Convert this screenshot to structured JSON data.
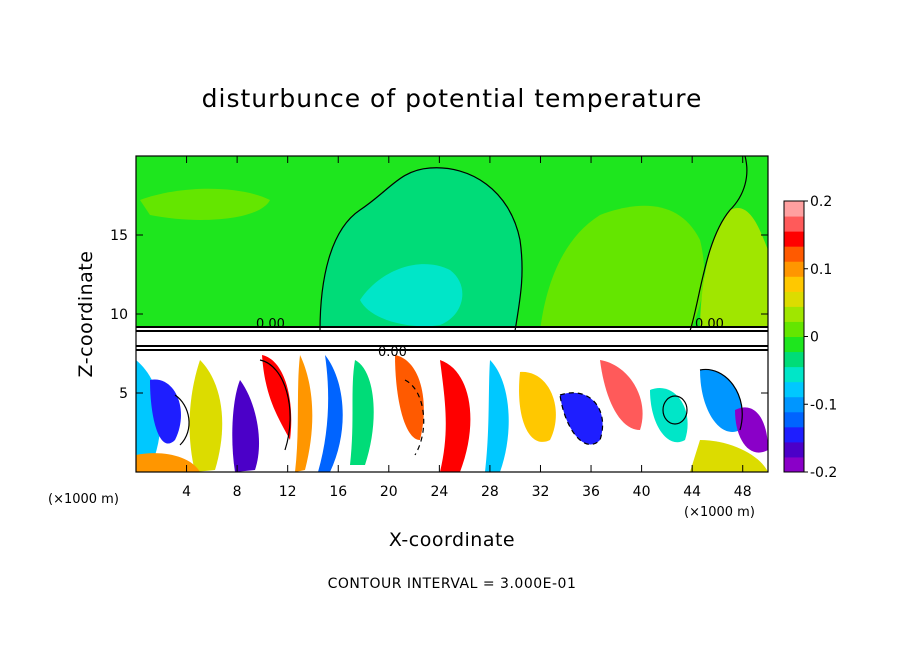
{
  "title": "disturbunce of potential temperature",
  "footer": "CONTOUR INTERVAL = 3.000E-01",
  "chart_data": {
    "type": "heatmap",
    "title": "disturbunce of potential temperature",
    "xlabel": "X-coordinate",
    "ylabel": "Z-coordinate",
    "x_unit": "(×1000 m)",
    "y_unit": "(×1000 m)",
    "xlim": [
      0,
      50
    ],
    "ylim": [
      0,
      20
    ],
    "x_ticks": [
      4,
      8,
      12,
      16,
      20,
      24,
      28,
      32,
      36,
      40,
      44,
      48
    ],
    "y_ticks": [
      5,
      10,
      15
    ],
    "colorbar": {
      "range": [
        -0.2,
        0.2
      ],
      "tick_labels": [
        "0.2",
        "0.1",
        "0",
        "-0.1",
        "-0.2"
      ],
      "tick_values": [
        0.2,
        0.1,
        0,
        -0.1,
        -0.2
      ],
      "colors": [
        "#8a00c8",
        "#4b00c8",
        "#1e1eff",
        "#0064ff",
        "#0096ff",
        "#00c8ff",
        "#00e6c8",
        "#00dc78",
        "#1ee61e",
        "#64e600",
        "#a0e600",
        "#dcdc00",
        "#ffc800",
        "#ff9600",
        "#ff5a00",
        "#ff0000",
        "#ff5a5a",
        "#ffa0a0"
      ]
    },
    "contour_labels": [
      "0.00",
      "0.00",
      "0.00"
    ],
    "contour_interval": 0.3
  }
}
